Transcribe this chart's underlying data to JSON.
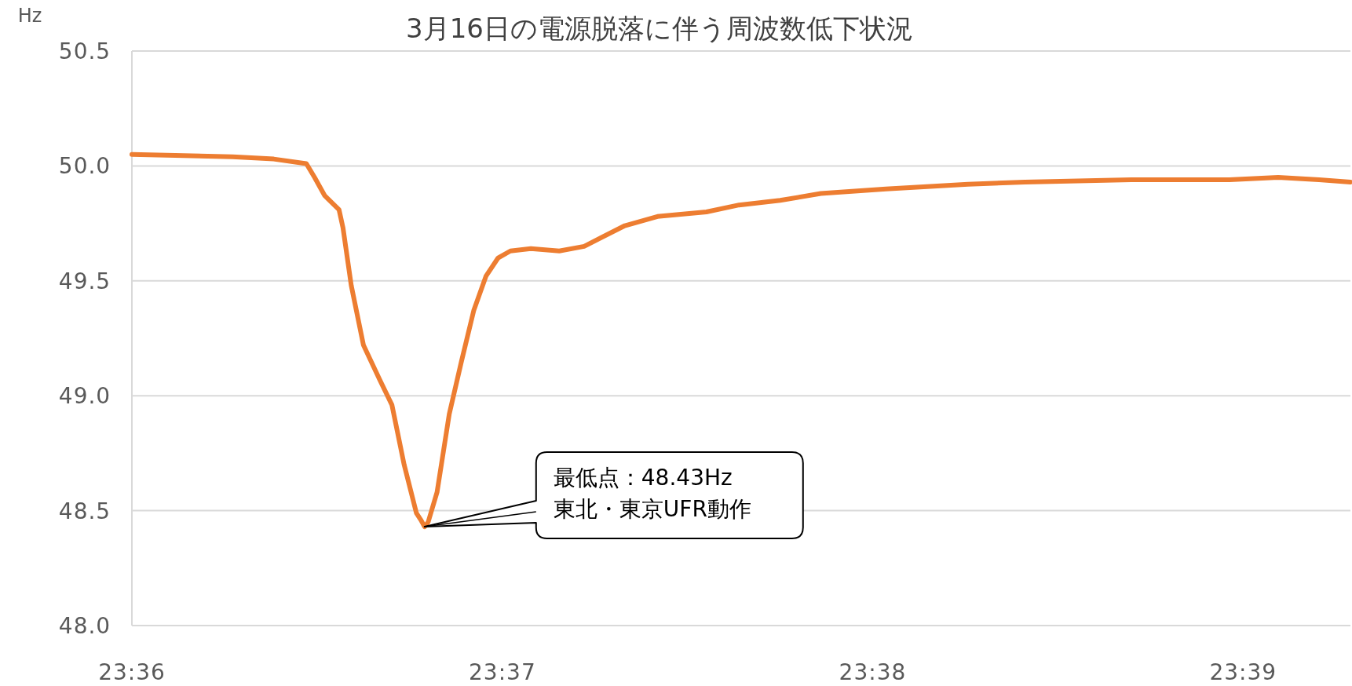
{
  "chart_data": {
    "type": "line",
    "title": "3月16日の電源脱落に伴う周波数低下状況",
    "ylabel": "Hz",
    "x": [
      23.6,
      23.60453,
      23.60638,
      23.60785,
      23.60822,
      23.60868,
      23.60932,
      23.6095,
      23.60987,
      23.61042,
      23.61115,
      23.6117,
      23.61225,
      23.6128,
      23.613,
      23.61317,
      23.61333,
      23.61373,
      23.61428,
      23.61483,
      23.61538,
      23.61593,
      23.61648,
      23.61703,
      23.61795,
      23.61923,
      23.62035,
      23.62218,
      23.62365,
      23.62585,
      23.62732,
      23.62917,
      23.631,
      23.63393,
      23.63762,
      23.64018,
      23.64497,
      23.64938,
      23.65158,
      23.65342,
      23.65483
    ],
    "series": [
      {
        "color": "#ed7d31",
        "values": [
          50.05,
          50.04,
          50.03,
          50.01,
          49.95,
          49.87,
          49.81,
          49.73,
          49.48,
          49.22,
          49.07,
          48.96,
          48.7,
          48.49,
          48.46,
          48.43,
          48.45,
          48.58,
          48.92,
          49.15,
          49.37,
          49.52,
          49.6,
          49.63,
          49.64,
          49.63,
          49.65,
          49.74,
          49.78,
          49.8,
          49.83,
          49.85,
          49.88,
          49.9,
          49.92,
          49.93,
          49.94,
          49.94,
          49.95,
          49.94,
          49.93
        ]
      }
    ],
    "xlim": [
      23.6,
      23.65483
    ],
    "xticks": [
      {
        "value": 23.6,
        "label": "23:36"
      },
      {
        "value": 23.61667,
        "label": "23:37"
      },
      {
        "value": 23.63333,
        "label": "23:38"
      },
      {
        "value": 23.65,
        "label": "23:39"
      }
    ],
    "ylim": [
      48.0,
      50.5
    ],
    "yticks": [
      {
        "value": 48.0,
        "label": "48.0"
      },
      {
        "value": 48.5,
        "label": "48.5"
      },
      {
        "value": 49.0,
        "label": "49.0"
      },
      {
        "value": 49.5,
        "label": "49.5"
      },
      {
        "value": 50.0,
        "label": "50.0"
      },
      {
        "value": 50.5,
        "label": "50.5"
      }
    ],
    "grid": "y",
    "marker": "none",
    "line_style": "solid",
    "annotations": [
      {
        "text": "最低点：48.43Hz\n東北・東京UFR動作",
        "x": 23.61317,
        "y": 48.43
      }
    ]
  }
}
